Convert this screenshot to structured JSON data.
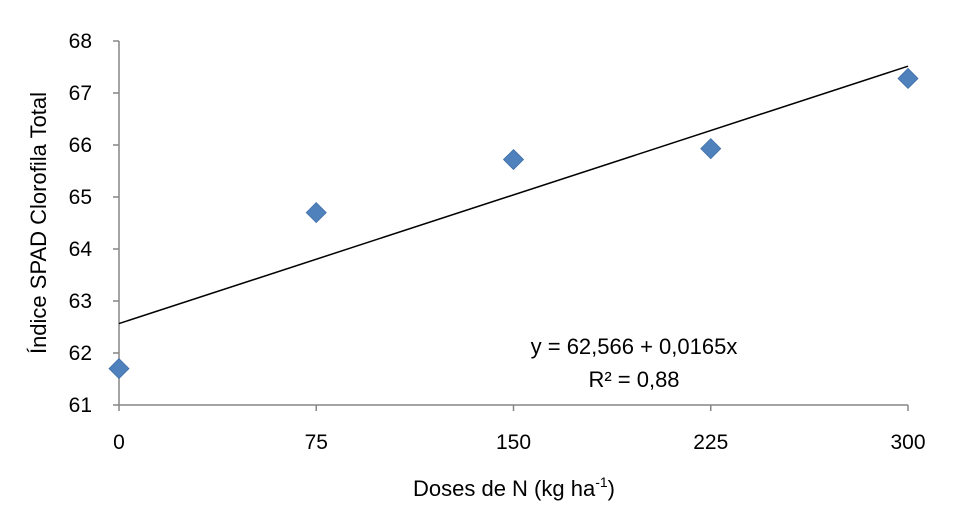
{
  "chart_data": {
    "type": "scatter",
    "title": "",
    "xlabel": "Doses de N (kg ha",
    "xlabel_sup": "-1",
    "xlabel_end": ")",
    "ylabel": "Índice SPAD Clorofila Total",
    "x_ticks": [
      "0",
      "75",
      "150",
      "225",
      "300"
    ],
    "y_ticks": [
      "61",
      "62",
      "63",
      "64",
      "65",
      "66",
      "67",
      "68"
    ],
    "xlim": [
      0,
      300
    ],
    "ylim": [
      61,
      68
    ],
    "grid": false,
    "marker_color": "#4f81bd",
    "series": [
      {
        "x": [
          0,
          75,
          150,
          225,
          300
        ],
        "y": [
          61.7,
          64.7,
          65.72,
          65.93,
          67.28
        ]
      }
    ],
    "trendline": {
      "intercept": 62.566,
      "slope": 0.0165,
      "equation": "y = 62,566 + 0,0165x",
      "r2": "R² = 0,88"
    }
  }
}
